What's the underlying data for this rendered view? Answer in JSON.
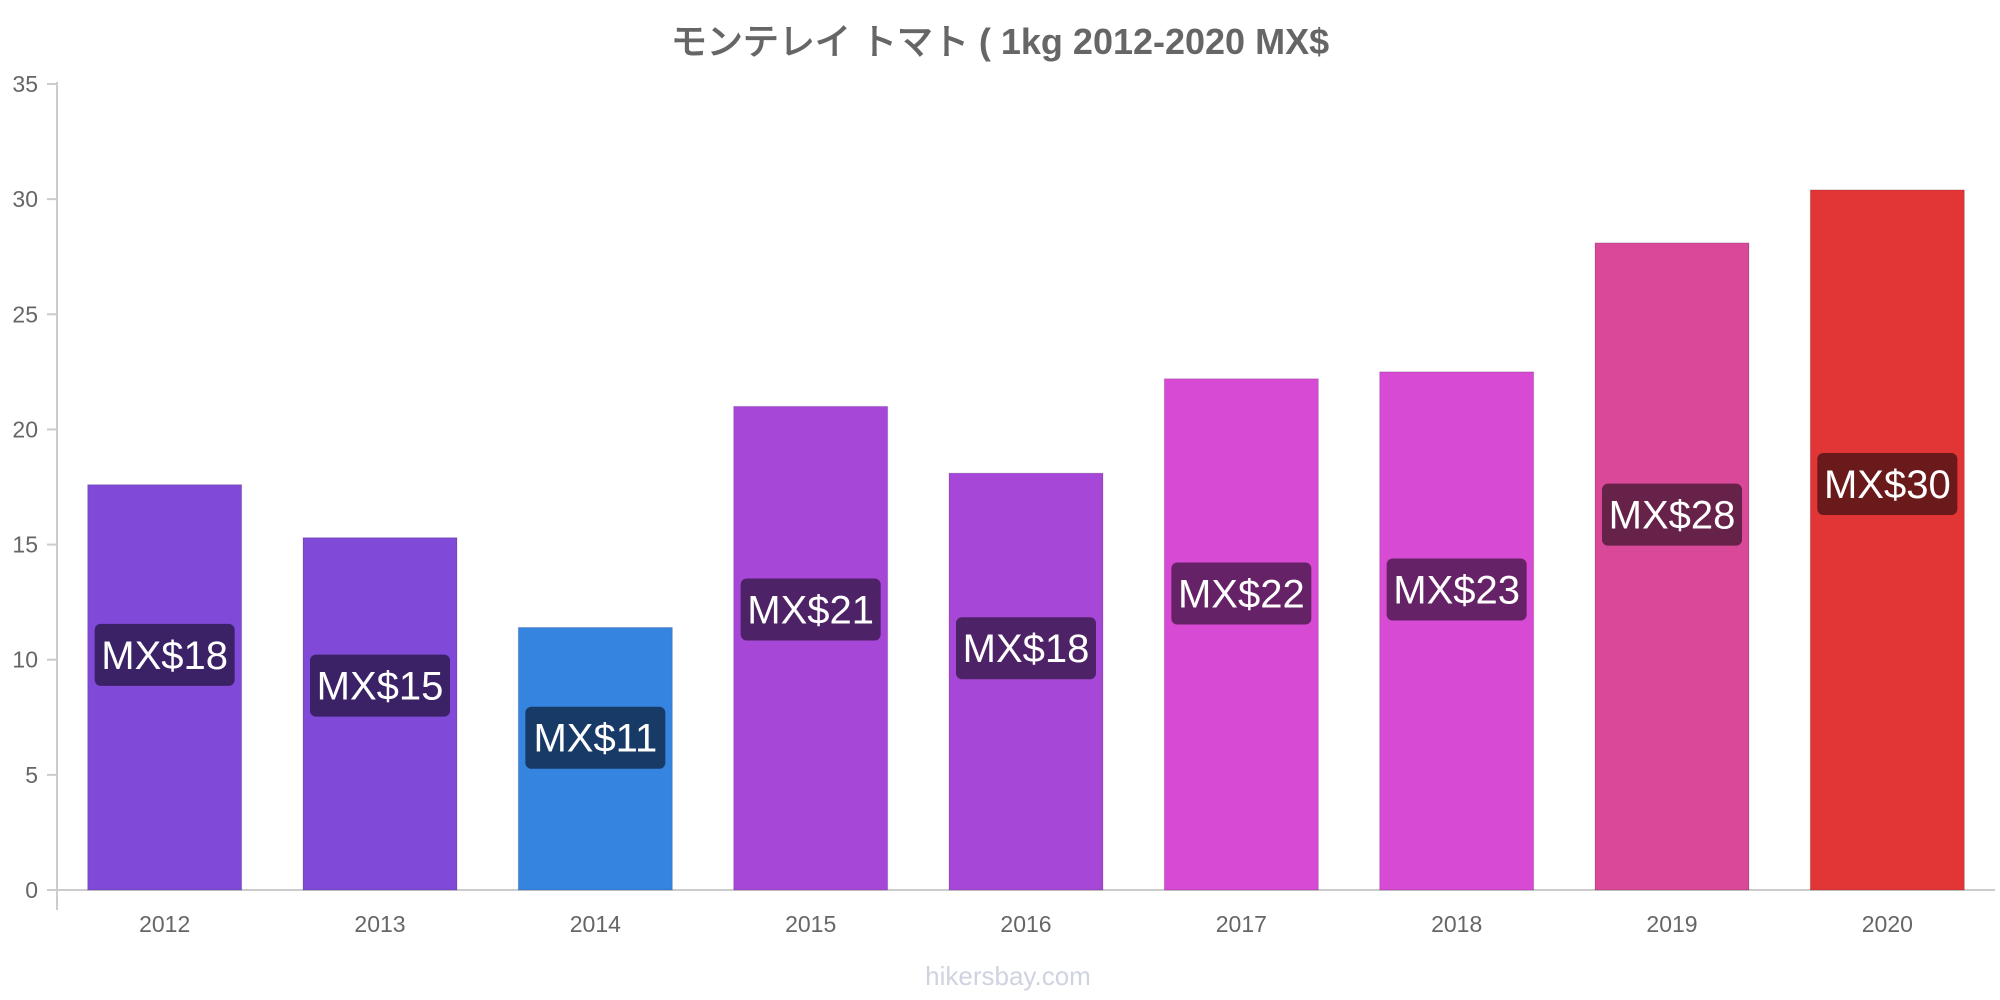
{
  "chart_data": {
    "type": "bar",
    "title": "モンテレイ トマト ( 1kg 2012-2020 MX$",
    "xlabel": "",
    "ylabel": "",
    "ylim": [
      0,
      35
    ],
    "yticks": [
      0,
      5,
      10,
      15,
      20,
      25,
      30,
      35
    ],
    "categories": [
      "2012",
      "2013",
      "2014",
      "2015",
      "2016",
      "2017",
      "2018",
      "2019",
      "2020"
    ],
    "values": [
      17.6,
      15.3,
      11.4,
      21.0,
      18.1,
      22.2,
      22.5,
      28.1,
      30.4
    ],
    "data_labels": [
      "MX$18",
      "MX$15",
      "MX$11",
      "MX$21",
      "MX$18",
      "MX$22",
      "MX$23",
      "MX$28",
      "MX$30"
    ],
    "bar_colors": [
      "#8049d8",
      "#8049d8",
      "#3584e0",
      "#a647d8",
      "#a647d8",
      "#d64ad4",
      "#d64ad4",
      "#d94899",
      "#e23636"
    ],
    "label_bg_colors": [
      "#3b2266",
      "#3b2266",
      "#173a66",
      "#4e2266",
      "#4e2266",
      "#662266",
      "#662266",
      "#662248",
      "#6a1a1a"
    ],
    "grid": false,
    "legend": "none"
  },
  "source": "hikersbay.com"
}
